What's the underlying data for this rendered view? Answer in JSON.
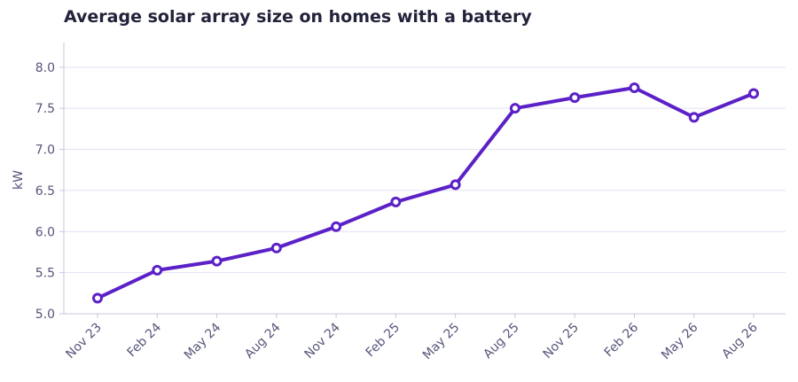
{
  "chart_data": {
    "type": "line",
    "title": "Average solar array size on homes with a battery",
    "xlabel": "",
    "ylabel": "kW",
    "categories": [
      "Nov 23",
      "Feb 24",
      "May 24",
      "Aug 24",
      "Nov 24",
      "Feb 25",
      "May 25",
      "Aug 25",
      "Nov 25",
      "Feb 26",
      "May 26",
      "Aug 26"
    ],
    "series": [
      {
        "values": [
          5.19,
          5.53,
          5.64,
          5.8,
          6.06,
          6.36,
          6.57,
          7.5,
          7.63,
          7.75,
          7.39,
          7.68
        ]
      }
    ],
    "ylim": [
      5.0,
      8.3
    ],
    "yticks": [
      "5.0",
      "5.5",
      "6.0",
      "6.5",
      "7.0",
      "7.5",
      "8.0"
    ],
    "grid": true,
    "colors": {
      "line": "#5b21c7",
      "grid": "#e3e1f3",
      "axis": "#c9c6df",
      "text": "#55557a"
    }
  }
}
